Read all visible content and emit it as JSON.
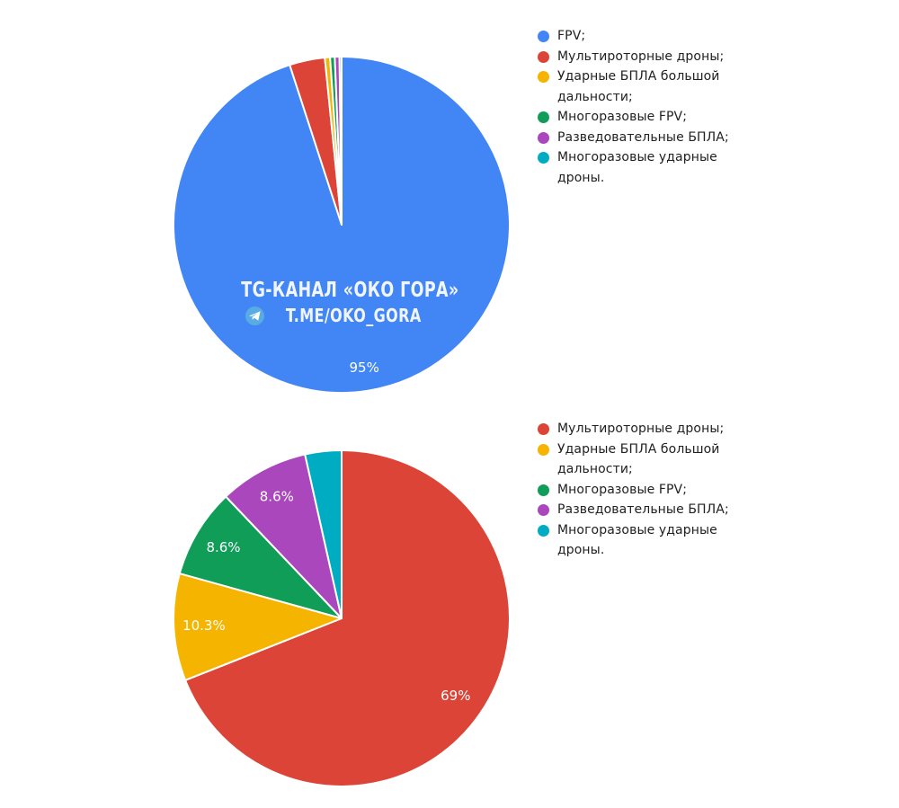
{
  "page": {
    "background": "#ffffff",
    "legend_text_color": "#212121"
  },
  "palette": {
    "blue": "#4285F4",
    "red": "#DB4437",
    "yellow": "#F4B400",
    "green": "#0F9D58",
    "purple": "#AB47BC",
    "teal": "#00ACC1"
  },
  "watermark": {
    "line1": "TG-КАНАЛ «ОКО ГОРА»",
    "line2": "T.ME/OKO_GORA",
    "icon": "telegram-icon",
    "icon_color": "#58ACE3",
    "text_color": "#ffffff"
  },
  "chart_data": [
    {
      "type": "pie",
      "title": "",
      "legend_position": "right",
      "start_angle": "12-oclock-clockwise",
      "slice_label_color": "#ffffff",
      "label_distance": 0.86,
      "slices": [
        {
          "label": "FPV;",
          "value": 95.0,
          "pct_label": "95%",
          "color": "#4285F4"
        },
        {
          "label": "Мультироторные дроны;",
          "value": 3.4,
          "pct_label": "",
          "color": "#DB4437"
        },
        {
          "label": "Ударные БПЛА большой дальности;",
          "value": 0.5,
          "pct_label": "",
          "color": "#F4B400"
        },
        {
          "label": "Многоразовые FPV;",
          "value": 0.45,
          "pct_label": "",
          "color": "#0F9D58"
        },
        {
          "label": "Разведовательные БПЛА;",
          "value": 0.45,
          "pct_label": "",
          "color": "#AB47BC"
        },
        {
          "label": "Многоразовые ударные дроны.",
          "value": 0.2,
          "pct_label": "",
          "color": "#00ACC1"
        }
      ]
    },
    {
      "type": "pie",
      "title": "",
      "legend_position": "right",
      "start_angle": "12-oclock-clockwise",
      "slice_label_color": "#ffffff",
      "label_distance": 0.82,
      "slices": [
        {
          "label": "Мультироторные дроны;",
          "value": 69.0,
          "pct_label": "69%",
          "color": "#DB4437"
        },
        {
          "label": "Ударные БПЛА большой дальности;",
          "value": 10.3,
          "pct_label": "10.3%",
          "color": "#F4B400"
        },
        {
          "label": "Многоразовые FPV;",
          "value": 8.6,
          "pct_label": "8.6%",
          "color": "#0F9D58"
        },
        {
          "label": "Разведовательные БПЛА;",
          "value": 8.6,
          "pct_label": "8.6%",
          "color": "#AB47BC"
        },
        {
          "label": "Многоразовые ударные дроны.",
          "value": 3.5,
          "pct_label": "",
          "color": "#00ACC1"
        }
      ]
    }
  ]
}
